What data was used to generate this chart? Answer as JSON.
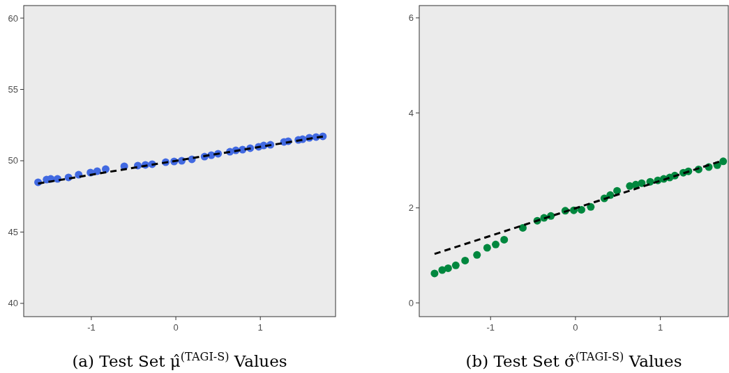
{
  "chart_data": [
    {
      "type": "scatter",
      "title": "(a) Test Set μ̂$^{(TAGI-S)}$ Values",
      "xlim": [
        -1.8,
        1.89
      ],
      "ylim": [
        39.07,
        60.88
      ],
      "xticks": [
        -1,
        0,
        1
      ],
      "yticks": [
        40,
        45,
        50,
        55,
        60
      ],
      "series": [
        {
          "type": "scatter",
          "color": "#4169e1",
          "marker": "circle",
          "x": [
            -1.63,
            -1.53,
            -1.48,
            -1.4,
            -1.27,
            -1.15,
            -1.01,
            -0.93,
            -0.83,
            -0.61,
            -0.45,
            -0.36,
            -0.28,
            -0.12,
            -0.02,
            0.07,
            0.19,
            0.34,
            0.42,
            0.5,
            0.64,
            0.71,
            0.79,
            0.88,
            0.98,
            1.04,
            1.12,
            1.28,
            1.33,
            1.45,
            1.5,
            1.58,
            1.66,
            1.74
          ],
          "values": [
            48.49,
            48.68,
            48.73,
            48.73,
            48.83,
            49.02,
            49.17,
            49.27,
            49.41,
            49.61,
            49.66,
            49.71,
            49.76,
            49.9,
            49.95,
            50.0,
            50.1,
            50.29,
            50.39,
            50.49,
            50.63,
            50.73,
            50.78,
            50.88,
            50.98,
            51.07,
            51.12,
            51.32,
            51.37,
            51.46,
            51.51,
            51.61,
            51.66,
            51.71
          ]
        },
        {
          "type": "line",
          "color": "#000000",
          "line_style": "dashed",
          "marker": "none",
          "x": [
            -1.63,
            1.74
          ],
          "values": [
            48.4,
            51.7
          ]
        }
      ]
    },
    {
      "type": "scatter",
      "title": "(b) Test Set σ̂$^{(TAGI-S)}$ Values",
      "xlim": [
        -1.84,
        1.8
      ],
      "ylim": [
        -0.29,
        6.26
      ],
      "xticks": [
        -1,
        0,
        1
      ],
      "yticks": [
        0,
        2,
        4,
        6
      ],
      "series": [
        {
          "type": "scatter",
          "color": "#00873e",
          "marker": "circle",
          "x": [
            -1.66,
            -1.57,
            -1.5,
            -1.41,
            -1.3,
            -1.16,
            -1.04,
            -0.94,
            -0.84,
            -0.62,
            -0.45,
            -0.37,
            -0.29,
            -0.12,
            -0.02,
            0.07,
            0.18,
            0.34,
            0.41,
            0.49,
            0.64,
            0.71,
            0.78,
            0.88,
            0.97,
            1.04,
            1.11,
            1.17,
            1.27,
            1.33,
            1.45,
            1.57,
            1.67,
            1.74
          ],
          "values": [
            0.62,
            0.69,
            0.73,
            0.79,
            0.89,
            1.01,
            1.16,
            1.23,
            1.33,
            1.58,
            1.73,
            1.79,
            1.83,
            1.94,
            1.95,
            1.96,
            2.02,
            2.2,
            2.27,
            2.36,
            2.46,
            2.49,
            2.52,
            2.55,
            2.58,
            2.61,
            2.64,
            2.68,
            2.74,
            2.77,
            2.81,
            2.86,
            2.9,
            2.98
          ]
        },
        {
          "type": "line",
          "color": "#000000",
          "line_style": "dashed",
          "marker": "none",
          "x": [
            -1.66,
            1.74
          ],
          "values": [
            1.03,
            3.0
          ]
        }
      ]
    }
  ]
}
